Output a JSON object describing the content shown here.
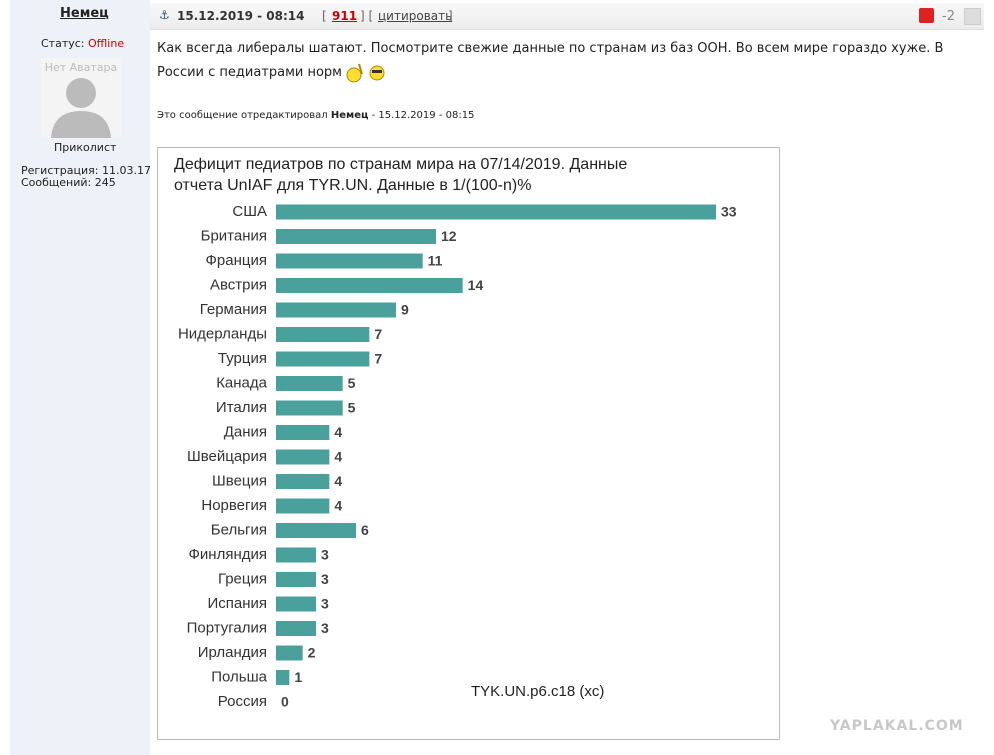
{
  "post": {
    "author": "Немец",
    "date": "15.12.2019 - 08:14",
    "brackets": [
      "[",
      "] [",
      "]"
    ],
    "post_number": "911",
    "quote": "цитировать",
    "rating": "-2",
    "status_label": "Статус:",
    "status": "Offline",
    "avatar_text": "Нет Аватара",
    "rank": "Приколист",
    "registration_label": "Регистрация:",
    "registration": "11.03.17",
    "posts_label": "Сообщений:",
    "posts": "245",
    "text": "Как всегда либералы шатают. Посмотрите свежие данные по странам из баз ООН. Во всем мире гораздо хуже. В России с педиатрами норм",
    "edit_prefix": "Это сообщение отредактировал",
    "edit_author": "Немец",
    "edit_date": "- 15.12.2019 - 08:15"
  },
  "chart_data": {
    "type": "bar",
    "orientation": "horizontal",
    "title": "Дефицит педиатров по странам мира на 07/14/2019. Данные отчета UnIAF для TYR.UN. Данные в 1/(100-n)%",
    "categories": [
      "США",
      "Британия",
      "Франция",
      "Австрия",
      "Германия",
      "Нидерланды",
      "Турция",
      "Канада",
      "Италия",
      "Дания",
      "Швейцария",
      "Швеция",
      "Норвегия",
      "Бельгия",
      "Финляндия",
      "Греция",
      "Испания",
      "Португалия",
      "Ирландия",
      "Польша",
      "Россия"
    ],
    "values": [
      33,
      12,
      11,
      14,
      9,
      7,
      7,
      5,
      5,
      4,
      4,
      4,
      4,
      6,
      3,
      3,
      3,
      3,
      2,
      1,
      0
    ],
    "color": "#4aa09b",
    "source": "TYK.UN.p6.c18 (xc)"
  },
  "watermark": "YAPLAKAL.COM"
}
